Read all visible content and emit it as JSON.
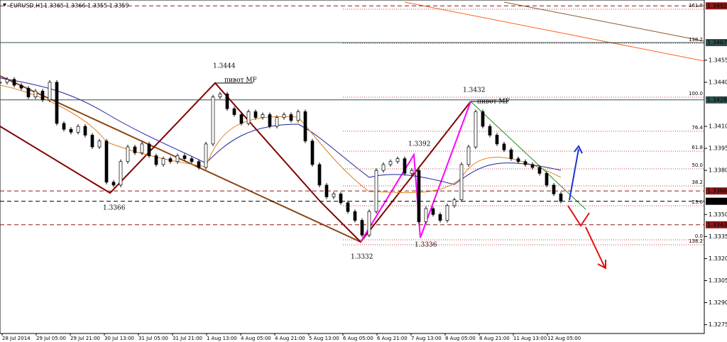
{
  "header": {
    "symbol": "EURUSD,H1",
    "quote": "1.3365 1.3366 1.3355 1.3359"
  },
  "chart_data": {
    "type": "candlestick",
    "closes": [
      1.344,
      1.3442,
      1.3438,
      1.3436,
      1.343,
      1.3434,
      1.3428,
      1.344,
      1.3412,
      1.3408,
      1.3406,
      1.341,
      1.3404,
      1.3396,
      1.34,
      1.3372,
      1.337,
      1.3386,
      1.3396,
      1.3392,
      1.3398,
      1.339,
      1.3384,
      1.3388,
      1.3386,
      1.339,
      1.3388,
      1.3386,
      1.3382,
      1.3398,
      1.343,
      1.3432,
      1.3422,
      1.3418,
      1.3412,
      1.342,
      1.3416,
      1.3418,
      1.341,
      1.3416,
      1.3418,
      1.3414,
      1.342,
      1.34,
      1.3384,
      1.337,
      1.3362,
      1.3364,
      1.3358,
      1.3352,
      1.3346,
      1.3336,
      1.3352,
      1.338,
      1.3384,
      1.3386,
      1.3388,
      1.3378,
      1.338,
      1.3345,
      1.3354,
      1.335,
      1.3346,
      1.3356,
      1.336,
      1.3384,
      1.3396,
      1.342,
      1.341,
      1.3404,
      1.3398,
      1.3394,
      1.3388,
      1.3386,
      1.3384,
      1.3382,
      1.3378,
      1.337,
      1.3364,
      1.3359
    ],
    "ylim": [
      1.3269,
      1.3496
    ],
    "yticks": [
      1.3275,
      {
        "value": 1.329,
        "label": "1.3290"
      },
      1.3305,
      {
        "value": 1.332,
        "label": "1.3320"
      },
      1.3335,
      {
        "value": 1.335,
        "label": "1.3350"
      },
      {
        "value": 1.338,
        "label": "1.3380"
      },
      1.3395,
      {
        "value": 1.341,
        "label": "1.3410"
      },
      {
        "value": 1.344,
        "label": "1.3440"
      },
      1.3455
    ],
    "x_labels": [
      "28 Jul 2014",
      "29 Jul 05:00",
      "29 Jul 21:00",
      "30 Jul 13:00",
      "31 Jul 05:00",
      "31 Jul 21:00",
      "1 Aug 13:00",
      "4 Aug 05:00",
      "4 Aug 21:00",
      "5 Aug 13:00",
      "6 Aug 05:00",
      "6 Aug 21:00",
      "7 Aug 13:00",
      "8 Aug 05:00",
      "8 Aug 21:00",
      "11 Aug 13:00",
      "12 Aug 05:00"
    ],
    "price_levels": [
      {
        "value": 1.3492,
        "color": "#8b1a1a"
      },
      {
        "value": 1.3467,
        "color": "#2f4f4f"
      },
      {
        "value": 1.3428,
        "color": "#2f4f4f"
      },
      {
        "value": 1.3366,
        "color": "#8b1a1a"
      },
      {
        "value": 1.3359,
        "color": "#000000"
      },
      {
        "value": 1.3343,
        "color": "#8b1a1a"
      }
    ],
    "fib_labels": [
      "161.8",
      "138.2",
      "100.0",
      "76.4",
      "61.8",
      "50.0",
      "38.2",
      "23.6",
      "0.0",
      "138.2"
    ],
    "annotations": [
      "1.3444",
      "1.3366",
      "1.3332",
      "1.3392",
      "1.3336",
      "1.3432",
      "пивот MF",
      "пивот MF"
    ]
  }
}
